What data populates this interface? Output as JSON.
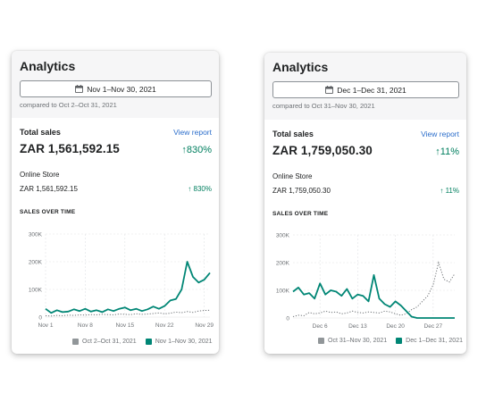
{
  "colors": {
    "accent": "#008675",
    "compare": "#919699",
    "link": "#2c6ecb",
    "positive": "#007f5f"
  },
  "left": {
    "title": "Analytics",
    "date_range": "Nov 1–Nov 30, 2021",
    "compare_text": "compared to Oct 2–Oct 31, 2021",
    "total_label": "Total sales",
    "view_report": "View report",
    "total_value": "ZAR 1,561,592.15",
    "total_pct": "830%",
    "store_label": "Online Store",
    "store_value": "ZAR 1,561,592.15",
    "store_pct": "830%",
    "chart_title": "SALES OVER TIME"
  },
  "right": {
    "title": "Analytics",
    "date_range": "Dec 1–Dec 31, 2021",
    "compare_text": "compared to Oct 31–Nov 30, 2021",
    "total_label": "Total sales",
    "view_report": "View report",
    "total_value": "ZAR 1,759,050.30",
    "total_pct": "11%",
    "store_label": "Online Store",
    "store_value": "ZAR 1,759,050.30",
    "store_pct": "11%",
    "chart_title": "SALES OVER TIME"
  },
  "chart_data": [
    {
      "type": "line",
      "ylim": [
        0,
        300000
      ],
      "yticks": [
        "0",
        "100K",
        "200K",
        "300K"
      ],
      "xticks": [
        "Nov 1",
        "Nov 8",
        "Nov 15",
        "Nov 22",
        "Nov 29"
      ],
      "series": [
        {
          "name": "Oct 2–Oct 31, 2021",
          "style": "dotted",
          "values": [
            5000,
            4000,
            6000,
            5000,
            7000,
            6000,
            8000,
            7000,
            9000,
            8000,
            10000,
            9000,
            8000,
            11000,
            10000,
            9000,
            12000,
            10000,
            11000,
            13000,
            15000,
            12000,
            14000,
            18000,
            16000,
            20000,
            17000,
            22000,
            24000,
            25000
          ]
        },
        {
          "name": "Nov 1–Nov 30, 2021",
          "style": "solid",
          "values": [
            30000,
            15000,
            25000,
            18000,
            20000,
            28000,
            22000,
            30000,
            20000,
            25000,
            18000,
            28000,
            22000,
            30000,
            35000,
            25000,
            30000,
            22000,
            28000,
            38000,
            30000,
            40000,
            60000,
            65000,
            100000,
            200000,
            145000,
            125000,
            135000,
            160000
          ]
        }
      ]
    },
    {
      "type": "line",
      "ylim": [
        0,
        300000
      ],
      "yticks": [
        "0",
        "100K",
        "200K",
        "300K"
      ],
      "xticks": [
        "Dec 6",
        "Dec 13",
        "Dec 20",
        "Dec 27"
      ],
      "series": [
        {
          "name": "Oct 31–Nov 30, 2021",
          "style": "dotted",
          "values": [
            5000,
            10000,
            8000,
            20000,
            15000,
            18000,
            25000,
            20000,
            22000,
            15000,
            18000,
            25000,
            20000,
            18000,
            22000,
            20000,
            18000,
            25000,
            22000,
            15000,
            10000,
            15000,
            30000,
            40000,
            60000,
            80000,
            120000,
            200000,
            140000,
            130000,
            160000
          ]
        },
        {
          "name": "Dec 1–Dec 31, 2021",
          "style": "solid",
          "values": [
            95000,
            110000,
            85000,
            90000,
            70000,
            125000,
            85000,
            100000,
            95000,
            80000,
            105000,
            70000,
            85000,
            80000,
            60000,
            155000,
            70000,
            50000,
            40000,
            60000,
            45000,
            25000,
            5000,
            0,
            0,
            0,
            0,
            0,
            0,
            0,
            0
          ]
        }
      ]
    }
  ]
}
